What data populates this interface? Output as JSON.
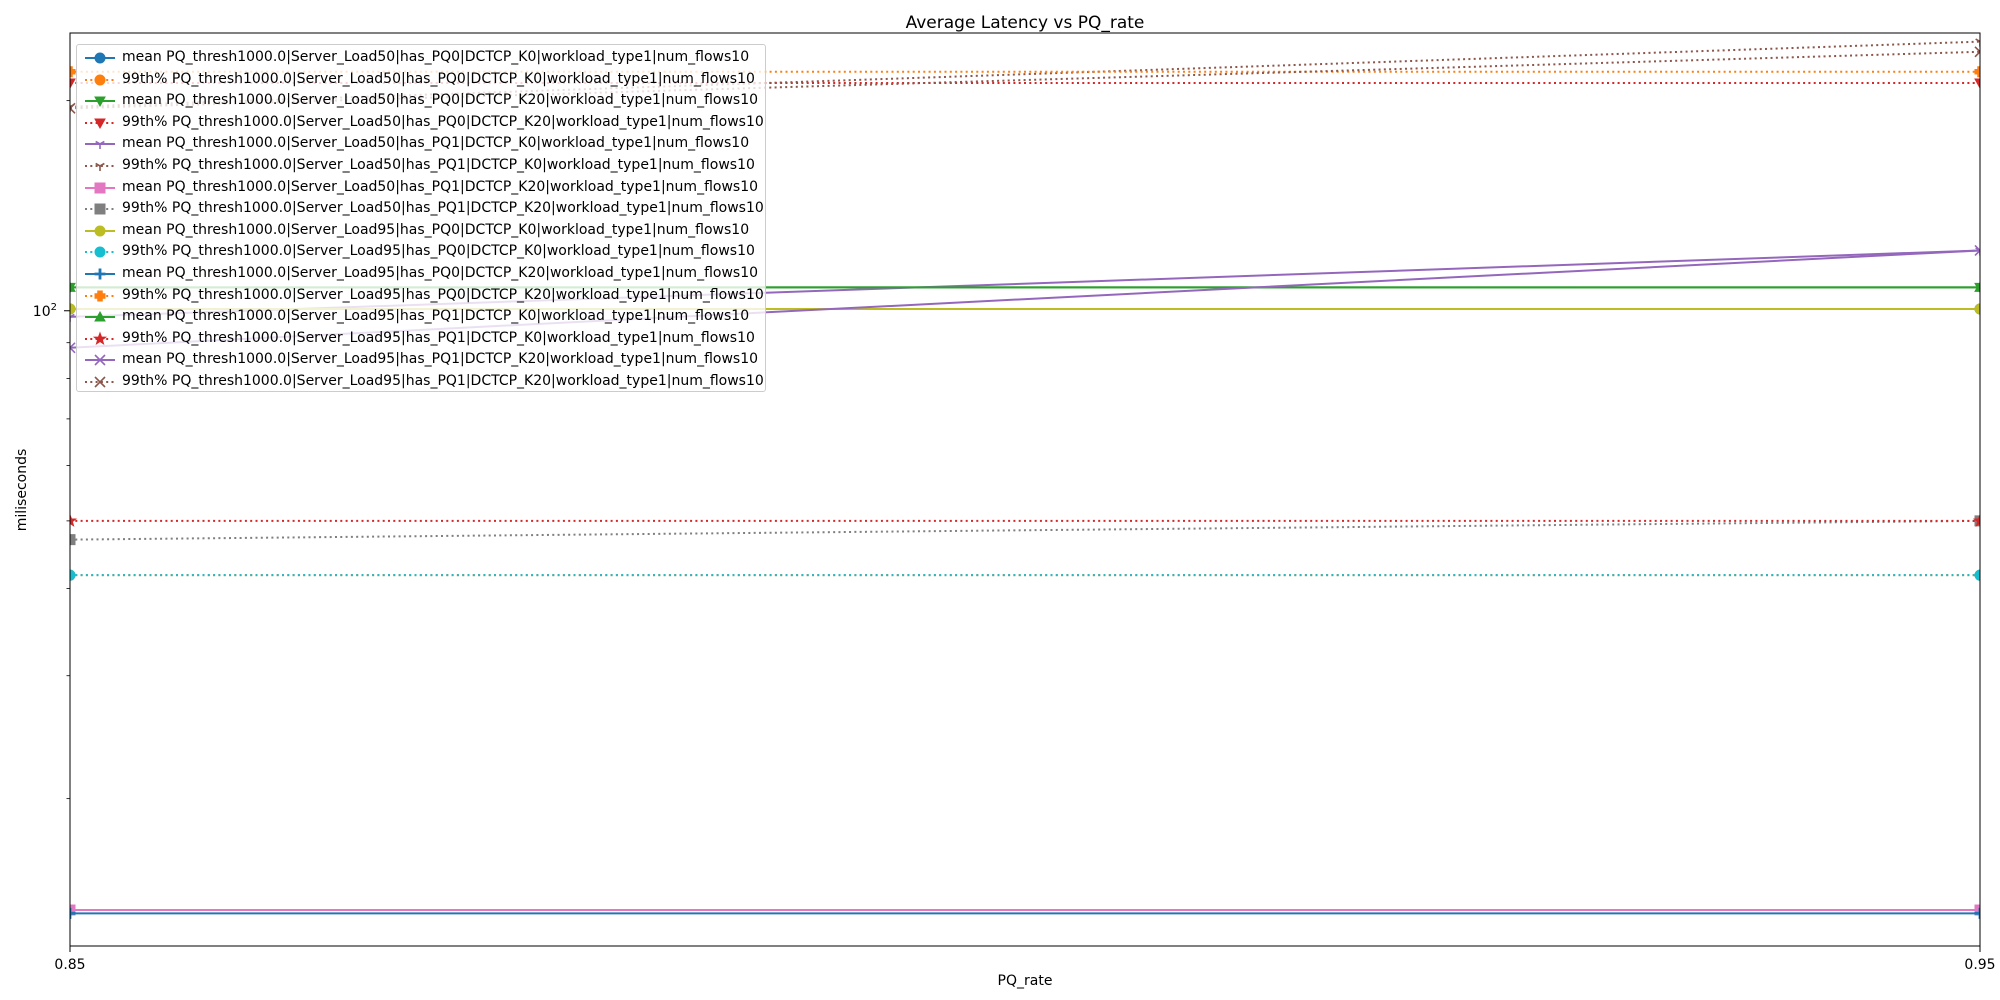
{
  "chart_data": {
    "type": "line",
    "title": "Average Latency vs PQ_rate",
    "xlabel": "PQ_rate",
    "ylabel": "miliseconds",
    "x": [
      0.85,
      0.95
    ],
    "x_tick_labels": [
      "0.85",
      "0.95"
    ],
    "xlim": [
      0.85,
      0.95
    ],
    "yscale": "log",
    "ylim": [
      12.3,
      250
    ],
    "y_tick_major": {
      "value": 100,
      "label_base": "10",
      "label_exp": "2"
    },
    "y_tick_minor": [
      20,
      30,
      40,
      50,
      60,
      70,
      80,
      90,
      200
    ],
    "grid": false,
    "legend_position": "upper left",
    "series": [
      {
        "name": "mean PQ_thresh1000.0|Server_Load50|has_PQ0|DCTCP_K0|workload_type1|num_flows10",
        "values": [
          100.6,
          100.6
        ],
        "color": "#1f77b4",
        "linestyle": "solid",
        "marker": "o"
      },
      {
        "name": "99th% PQ_thresh1000.0|Server_Load50|has_PQ0|DCTCP_K0|workload_type1|num_flows10",
        "values": [
          41.8,
          41.8
        ],
        "color": "#ff7f0e",
        "linestyle": "dotted",
        "marker": "o"
      },
      {
        "name": "mean PQ_thresh1000.0|Server_Load50|has_PQ0|DCTCP_K20|workload_type1|num_flows10",
        "values": [
          108.0,
          108.0
        ],
        "color": "#2ca02c",
        "linestyle": "solid",
        "marker": "v"
      },
      {
        "name": "99th% PQ_thresh1000.0|Server_Load50|has_PQ0|DCTCP_K20|workload_type1|num_flows10",
        "values": [
          212.0,
          212.0
        ],
        "color": "#d62728",
        "linestyle": "dotted",
        "marker": "v"
      },
      {
        "name": "mean PQ_thresh1000.0|Server_Load50|has_PQ1|DCTCP_K0|workload_type1|num_flows10",
        "values": [
          98.0,
          122.0
        ],
        "color": "#9467bd",
        "linestyle": "solid",
        "marker": "1"
      },
      {
        "name": "99th% PQ_thresh1000.0|Server_Load50|has_PQ1|DCTCP_K0|workload_type1|num_flows10",
        "values": [
          196.0,
          243.0
        ],
        "color": "#8c564b",
        "linestyle": "dotted",
        "marker": "1"
      },
      {
        "name": "mean PQ_thresh1000.0|Server_Load50|has_PQ1|DCTCP_K20|workload_type1|num_flows10",
        "values": [
          13.85,
          13.85
        ],
        "color": "#e377c2",
        "linestyle": "solid",
        "marker": "s"
      },
      {
        "name": "99th% PQ_thresh1000.0|Server_Load50|has_PQ1|DCTCP_K20|workload_type1|num_flows10",
        "values": [
          47.0,
          50.0
        ],
        "color": "#7f7f7f",
        "linestyle": "dotted",
        "marker": "s"
      },
      {
        "name": "mean PQ_thresh1000.0|Server_Load95|has_PQ0|DCTCP_K0|workload_type1|num_flows10",
        "values": [
          100.6,
          100.6
        ],
        "color": "#bcbd22",
        "linestyle": "solid",
        "marker": "p"
      },
      {
        "name": "99th% PQ_thresh1000.0|Server_Load95|has_PQ0|DCTCP_K0|workload_type1|num_flows10",
        "values": [
          41.8,
          41.8
        ],
        "color": "#17becf",
        "linestyle": "dotted",
        "marker": "h"
      },
      {
        "name": "mean PQ_thresh1000.0|Server_Load95|has_PQ0|DCTCP_K20|workload_type1|num_flows10",
        "values": [
          13.7,
          13.7
        ],
        "color": "#1f77b4",
        "linestyle": "solid",
        "marker": "+"
      },
      {
        "name": "99th% PQ_thresh1000.0|Server_Load95|has_PQ0|DCTCP_K20|workload_type1|num_flows10",
        "values": [
          220.0,
          220.0
        ],
        "color": "#ff7f0e",
        "linestyle": "dotted",
        "marker": "P"
      },
      {
        "name": "mean PQ_thresh1000.0|Server_Load95|has_PQ1|DCTCP_K0|workload_type1|num_flows10",
        "values": [
          108.0,
          108.0
        ],
        "color": "#2ca02c",
        "linestyle": "solid",
        "marker": "^"
      },
      {
        "name": "99th% PQ_thresh1000.0|Server_Load95|has_PQ1|DCTCP_K0|workload_type1|num_flows10",
        "values": [
          50.0,
          50.0
        ],
        "color": "#d62728",
        "linestyle": "dotted",
        "marker": "*"
      },
      {
        "name": "mean PQ_thresh1000.0|Server_Load95|has_PQ1|DCTCP_K20|workload_type1|num_flows10",
        "values": [
          88.5,
          122.0
        ],
        "color": "#9467bd",
        "linestyle": "solid",
        "marker": "x"
      },
      {
        "name": "99th% PQ_thresh1000.0|Server_Load95|has_PQ1|DCTCP_K20|workload_type1|num_flows10",
        "values": [
          195.0,
          235.0
        ],
        "color": "#8c564b",
        "linestyle": "dotted",
        "marker": "x"
      }
    ]
  }
}
